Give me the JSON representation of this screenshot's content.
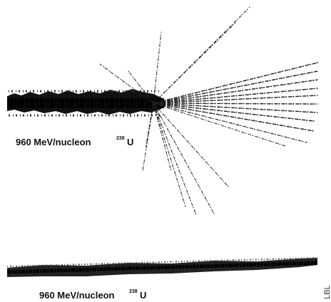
{
  "labels": [
    {
      "energy": "960 MeV/nucleon",
      "mass": "238",
      "element": "U"
    },
    {
      "energy": "960 MeV/nucleon",
      "mass": "238",
      "element": "U"
    }
  ],
  "side_text": "LBL"
}
